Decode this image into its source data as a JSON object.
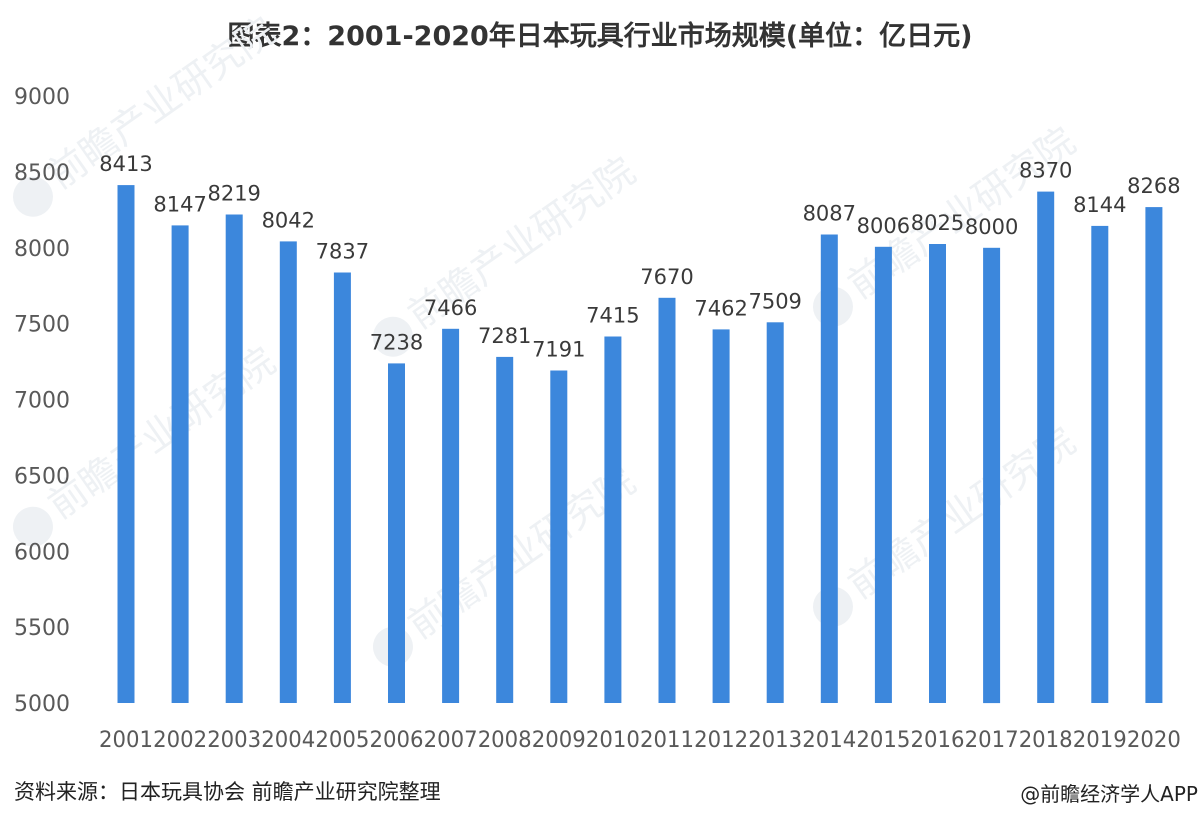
{
  "chart_data": {
    "type": "bar",
    "title": "图表2：2001-2020年日本玩具行业市场规模(单位：亿日元)",
    "categories": [
      "2001",
      "2002",
      "2003",
      "2004",
      "2005",
      "2006",
      "2007",
      "2008",
      "2009",
      "2010",
      "2011",
      "2012",
      "2013",
      "2014",
      "2015",
      "2016",
      "2017",
      "2018",
      "2019",
      "2020"
    ],
    "values": [
      8413,
      8147,
      8219,
      8042,
      7837,
      7238,
      7466,
      7281,
      7191,
      7415,
      7670,
      7462,
      7509,
      8087,
      8006,
      8025,
      8000,
      8370,
      8144,
      8268
    ],
    "ylim": [
      5000,
      9000
    ],
    "yticks": [
      5000,
      5500,
      6000,
      6500,
      7000,
      7500,
      8000,
      8500,
      9000
    ],
    "xlabel": "",
    "ylabel": "",
    "grid": false,
    "legend": "none",
    "bar_color": "#3c87dc",
    "label_color": "#3a3a3a",
    "tick_color": "#595959"
  },
  "footer": {
    "source": "资料来源：日本玩具协会 前瞻产业研究院整理",
    "credit": "@前瞻经济学人APP"
  },
  "watermark": {
    "text": "前瞻产业研究院"
  }
}
